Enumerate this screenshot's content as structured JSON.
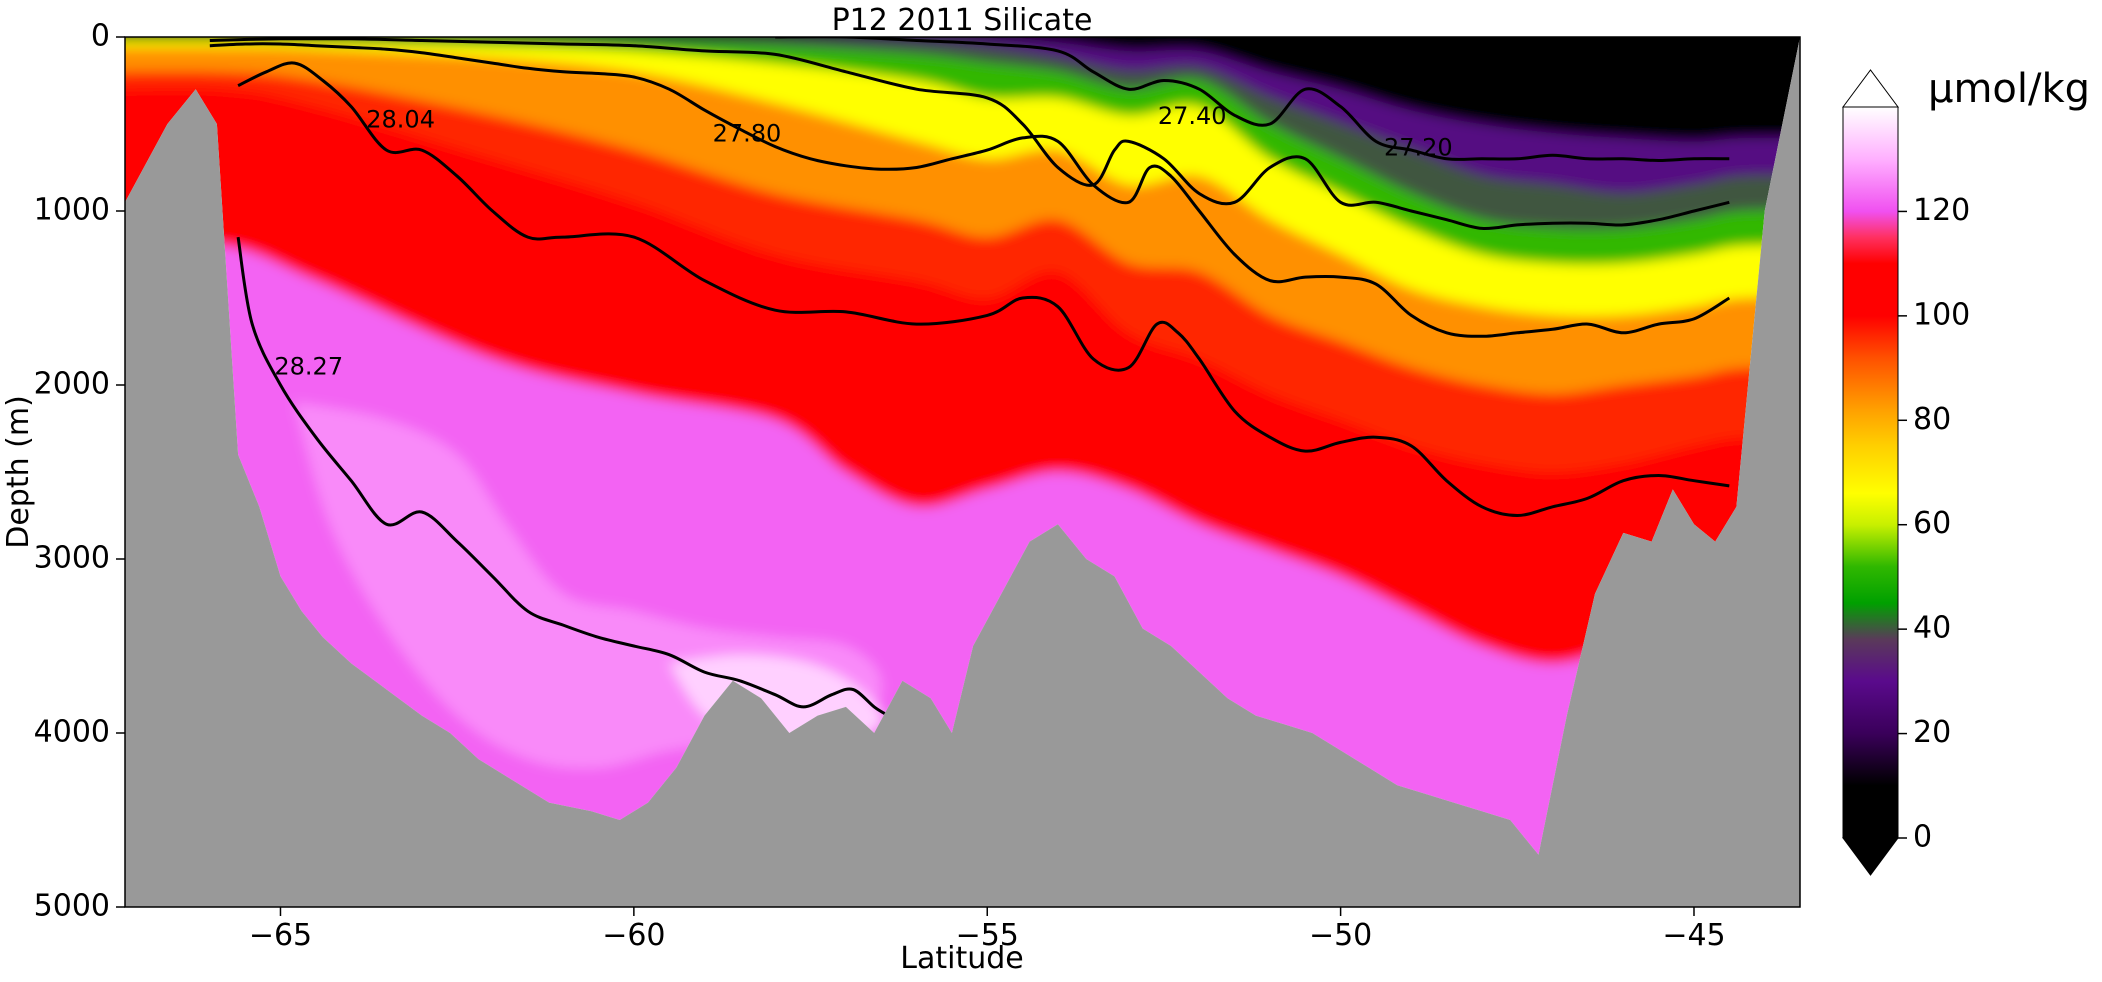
{
  "chart_data": {
    "type": "heatmap",
    "title": "P12 2011 Silicate",
    "xlabel": "Latitude",
    "ylabel": "Depth (m)",
    "xlim": [
      -67.2,
      -43.5
    ],
    "ylim": [
      5000,
      0
    ],
    "xticks": [
      -65,
      -60,
      -55,
      -50,
      -45
    ],
    "xtick_labels": [
      "−65",
      "−60",
      "−55",
      "−50",
      "−45"
    ],
    "yticks": [
      0,
      1000,
      2000,
      3000,
      4000,
      5000
    ],
    "ytick_labels": [
      "0",
      "1000",
      "2000",
      "3000",
      "4000",
      "5000"
    ],
    "colorbar": {
      "label": "µmol/kg",
      "range": [
        0,
        140
      ],
      "extend": "both",
      "ticks": [
        0,
        20,
        40,
        60,
        80,
        100,
        120
      ],
      "tick_labels": [
        "0",
        "20",
        "40",
        "60",
        "80",
        "100",
        "120"
      ],
      "colormap_stops": [
        {
          "value": 0,
          "color": "#000000"
        },
        {
          "value": 10,
          "color": "#000000"
        },
        {
          "value": 20,
          "color": "#3a005a"
        },
        {
          "value": 30,
          "color": "#5a0a8c"
        },
        {
          "value": 38,
          "color": "#5a3a5a"
        },
        {
          "value": 45,
          "color": "#00a000"
        },
        {
          "value": 52,
          "color": "#30b800"
        },
        {
          "value": 60,
          "color": "#c8f000"
        },
        {
          "value": 66,
          "color": "#ffff00"
        },
        {
          "value": 75,
          "color": "#ffd000"
        },
        {
          "value": 82,
          "color": "#ffa000"
        },
        {
          "value": 92,
          "color": "#ff5000"
        },
        {
          "value": 100,
          "color": "#ff0000"
        },
        {
          "value": 110,
          "color": "#ff0000"
        },
        {
          "value": 115,
          "color": "#ff3060"
        },
        {
          "value": 120,
          "color": "#f050f0"
        },
        {
          "value": 130,
          "color": "#ffb0ff"
        },
        {
          "value": 140,
          "color": "#ffffff"
        }
      ]
    },
    "field_bands": [
      {
        "value": 110,
        "lat": [
          -65.8,
          -64.5,
          -62,
          -60,
          -58,
          -57,
          -56,
          -55,
          -54,
          -53,
          -52,
          -51,
          -50,
          -49,
          -48,
          -47,
          -46,
          -45,
          -44.3
        ],
        "depth": [
          1200,
          1400,
          1850,
          2050,
          2200,
          2500,
          2700,
          2600,
          2500,
          2600,
          2800,
          2950,
          3100,
          3300,
          3500,
          3600,
          3500,
          3400,
          3300
        ]
      },
      {
        "value": 96,
        "lat": [
          -65.8,
          -64.5,
          -62,
          -60,
          -58,
          -56,
          -55,
          -54,
          -53,
          -52,
          -51,
          -50,
          -49,
          -48,
          -47,
          -46,
          -45,
          -44.3
        ],
        "depth": [
          300,
          400,
          700,
          950,
          1250,
          1400,
          1500,
          1350,
          1700,
          1850,
          2050,
          2200,
          2350,
          2450,
          2500,
          2450,
          2350,
          2300
        ]
      },
      {
        "value": 84,
        "lat": [
          -65.8,
          -64.5,
          -62,
          -60,
          -58,
          -56,
          -55,
          -54,
          -53,
          -52,
          -51,
          -50,
          -49,
          -48,
          -47,
          -46,
          -45,
          -44.3
        ],
        "depth": [
          200,
          250,
          450,
          650,
          900,
          1050,
          1150,
          1050,
          1300,
          1350,
          1600,
          1750,
          1900,
          2000,
          2050,
          2000,
          1950,
          1900
        ]
      },
      {
        "value": 66,
        "lat": [
          -65.8,
          -64.5,
          -62,
          -60,
          -58,
          -56,
          -55,
          -54,
          -53,
          -52,
          -51,
          -50,
          -49,
          -48,
          -47,
          -46,
          -45,
          -44.3
        ],
        "depth": [
          60,
          70,
          120,
          200,
          380,
          600,
          700,
          650,
          850,
          800,
          1050,
          1250,
          1450,
          1550,
          1600,
          1600,
          1550,
          1500
        ]
      },
      {
        "value": 52,
        "lat": [
          -65.8,
          -64.5,
          -62,
          -60,
          -58,
          -56,
          -55,
          -54,
          -53,
          -52,
          -51,
          -50,
          -49,
          -48,
          -47,
          -46,
          -45,
          -44.3
        ],
        "depth": [
          20,
          30,
          50,
          80,
          150,
          250,
          350,
          350,
          450,
          400,
          700,
          900,
          1100,
          1250,
          1300,
          1300,
          1250,
          1200
        ]
      },
      {
        "value": 40,
        "lat": [
          -65.8,
          -64.5,
          -62,
          -60,
          -58,
          -56,
          -55,
          -54,
          -53,
          -52,
          -51,
          -50,
          -49,
          -48,
          -47,
          -46,
          -45,
          -44.3
        ],
        "depth": [
          5,
          10,
          20,
          30,
          50,
          100,
          150,
          200,
          300,
          250,
          500,
          700,
          900,
          1050,
          1100,
          1100,
          1050,
          1000
        ]
      },
      {
        "value": 28,
        "lat": [
          -65.8,
          -62,
          -60,
          -58,
          -56,
          -55,
          -54,
          -53,
          -52,
          -51,
          -50,
          -49,
          -48,
          -47,
          -46,
          -45,
          -44.3
        ],
        "depth": [
          0,
          0,
          0,
          5,
          30,
          60,
          120,
          200,
          180,
          350,
          500,
          650,
          800,
          850,
          900,
          850,
          800
        ]
      },
      {
        "value": 8,
        "lat": [
          -60,
          -58,
          -56,
          -55,
          -54,
          -53,
          -52,
          -51,
          -50,
          -49,
          -48,
          -47,
          -46,
          -45,
          -44.3
        ],
        "depth": [
          0,
          0,
          0,
          10,
          30,
          80,
          80,
          200,
          300,
          420,
          500,
          550,
          580,
          600,
          580
        ]
      }
    ],
    "deep_patches": [
      {
        "value": 126,
        "lat": [
          -64.8,
          -63.5,
          -62.5,
          -61.8,
          -61,
          -60,
          -59,
          -58,
          -57,
          -56.5,
          -56.8,
          -57.5,
          -58.5,
          -59.5,
          -60.5,
          -61.5,
          -62.5,
          -63.5,
          -64.3
        ],
        "depth": [
          2100,
          2200,
          2400,
          2800,
          3200,
          3300,
          3400,
          3450,
          3500,
          3700,
          4000,
          4100,
          4050,
          4100,
          4200,
          4150,
          3900,
          3400,
          2800
        ]
      },
      {
        "value": 134,
        "lat": [
          -59.5,
          -58.5,
          -57.5,
          -56.8,
          -56.5,
          -57.3,
          -58.2,
          -59
        ],
        "depth": [
          3600,
          3550,
          3600,
          3750,
          3950,
          4080,
          4050,
          3900
        ]
      }
    ],
    "density_contours": [
      {
        "label": "28.27",
        "lat": [
          -65.6,
          -65.4,
          -65.0,
          -64.5,
          -64.0,
          -63.5,
          -63.0,
          -62.5,
          -62.0,
          -61.5,
          -61.0,
          -60.5,
          -60.0,
          -59.5,
          -59.0,
          -58.5,
          -58.0,
          -57.6,
          -57.2,
          -56.9,
          -56.6,
          -56.4
        ],
        "depth": [
          1150,
          1650,
          2000,
          2300,
          2550,
          2800,
          2730,
          2900,
          3100,
          3300,
          3380,
          3450,
          3500,
          3550,
          3650,
          3700,
          3780,
          3850,
          3780,
          3750,
          3850,
          3900
        ]
      },
      {
        "label": "28.04",
        "lat": [
          -65.6,
          -65.2,
          -64.8,
          -64.4,
          -64.0,
          -63.5,
          -63.0,
          -62.5,
          -62.0,
          -61.5,
          -61.0,
          -60.0,
          -59.0,
          -58.0,
          -57.0,
          -56.0,
          -55.0,
          -54.5,
          -54.0,
          -53.5,
          -53.0,
          -52.6,
          -52.3,
          -52.0,
          -51.5,
          -51.0,
          -50.5,
          -50.0,
          -49.5,
          -49.0,
          -48.5,
          -48.0,
          -47.5,
          -47.0,
          -46.5,
          -46.0,
          -45.5,
          -45.0,
          -44.5
        ],
        "depth": [
          280,
          200,
          150,
          250,
          400,
          650,
          650,
          800,
          1000,
          1150,
          1150,
          1150,
          1400,
          1570,
          1580,
          1650,
          1600,
          1500,
          1550,
          1850,
          1900,
          1650,
          1700,
          1850,
          2150,
          2300,
          2380,
          2330,
          2300,
          2350,
          2550,
          2700,
          2750,
          2700,
          2650,
          2550,
          2520,
          2550,
          2580
        ]
      },
      {
        "label": "27.80",
        "lat": [
          -66.0,
          -65.5,
          -65.0,
          -64.5,
          -64.0,
          -63.5,
          -63.0,
          -62.5,
          -62.0,
          -61.5,
          -61.0,
          -60.5,
          -60.0,
          -59.5,
          -59.0,
          -58.5,
          -58.0,
          -57.5,
          -57.0,
          -56.5,
          -56.0,
          -55.5,
          -55.0,
          -54.5,
          -54.0,
          -53.5,
          -53.0,
          -52.7,
          -52.4,
          -52.0,
          -51.5,
          -51.0,
          -50.5,
          -50.0,
          -49.5,
          -49.0,
          -48.5,
          -48.0,
          -47.5,
          -47.0,
          -46.5,
          -46.0,
          -45.5,
          -45.0,
          -44.5
        ],
        "depth": [
          50,
          40,
          40,
          50,
          60,
          70,
          90,
          120,
          150,
          180,
          200,
          210,
          230,
          300,
          420,
          530,
          630,
          700,
          740,
          760,
          750,
          700,
          650,
          580,
          600,
          850,
          950,
          750,
          800,
          1000,
          1250,
          1400,
          1380,
          1380,
          1420,
          1600,
          1700,
          1720,
          1700,
          1680,
          1650,
          1700,
          1650,
          1620,
          1500
        ]
      },
      {
        "label": "27.40",
        "lat": [
          -66.0,
          -65.0,
          -64.0,
          -63.0,
          -62.0,
          -61.0,
          -60.0,
          -59.0,
          -58.0,
          -57.0,
          -56.0,
          -55.0,
          -54.5,
          -54.0,
          -53.5,
          -53.2,
          -53.0,
          -52.5,
          -52.0,
          -51.5,
          -51.0,
          -50.5,
          -50.0,
          -49.5,
          -49.0,
          -48.5,
          -48.0,
          -47.5,
          -47.0,
          -46.5,
          -46.0,
          -45.5,
          -45.0,
          -44.5
        ],
        "depth": [
          20,
          10,
          10,
          20,
          30,
          40,
          50,
          80,
          100,
          200,
          300,
          350,
          500,
          750,
          850,
          650,
          600,
          700,
          900,
          950,
          750,
          700,
          950,
          950,
          1000,
          1050,
          1100,
          1080,
          1070,
          1070,
          1080,
          1050,
          1000,
          950
        ]
      },
      {
        "label": "27.20",
        "lat": [
          -58.0,
          -57.0,
          -56.0,
          -55.0,
          -54.0,
          -53.5,
          -53.0,
          -52.5,
          -52.0,
          -51.5,
          -51.0,
          -50.5,
          -50.0,
          -49.5,
          -49.0,
          -48.5,
          -48.0,
          -47.5,
          -47.0,
          -46.5,
          -46.0,
          -45.5,
          -45.0,
          -44.5
        ],
        "depth": [
          0,
          0,
          20,
          40,
          80,
          200,
          300,
          250,
          300,
          450,
          500,
          300,
          400,
          600,
          650,
          700,
          700,
          700,
          680,
          700,
          700,
          710,
          700,
          700
        ]
      }
    ],
    "contour_labels": [
      {
        "text": "28.04",
        "lat": -63.3,
        "depth": 480
      },
      {
        "text": "27.80",
        "lat": -58.4,
        "depth": 560
      },
      {
        "text": "27.40",
        "lat": -52.1,
        "depth": 460
      },
      {
        "text": "27.20",
        "lat": -48.9,
        "depth": 640
      },
      {
        "text": "28.27",
        "lat": -64.6,
        "depth": 1900
      }
    ],
    "bathymetry": {
      "lat": [
        -67.2,
        -66.6,
        -66.2,
        -65.9,
        -65.6,
        -65.3,
        -65.0,
        -64.7,
        -64.4,
        -64.0,
        -63.5,
        -63.0,
        -62.6,
        -62.2,
        -61.8,
        -61.2,
        -60.6,
        -60.2,
        -59.8,
        -59.4,
        -59.0,
        -58.6,
        -58.2,
        -57.8,
        -57.4,
        -57.0,
        -56.6,
        -56.2,
        -55.8,
        -55.5,
        -55.2,
        -54.8,
        -54.4,
        -54.0,
        -53.6,
        -53.2,
        -52.8,
        -52.4,
        -52.0,
        -51.6,
        -51.2,
        -50.8,
        -50.4,
        -50.0,
        -49.6,
        -49.2,
        -48.8,
        -48.4,
        -48.0,
        -47.6,
        -47.2,
        -46.8,
        -46.4,
        -46.0,
        -45.6,
        -45.3,
        -45.0,
        -44.7,
        -44.4,
        -44.0,
        -43.5
      ],
      "depth": [
        950,
        500,
        300,
        500,
        2400,
        2700,
        3100,
        3300,
        3450,
        3600,
        3750,
        3900,
        4000,
        4150,
        4250,
        4400,
        4450,
        4500,
        4400,
        4200,
        3900,
        3700,
        3800,
        4000,
        3900,
        3850,
        4000,
        3700,
        3800,
        4000,
        3500,
        3200,
        2900,
        2800,
        3000,
        3100,
        3400,
        3500,
        3650,
        3800,
        3900,
        3950,
        4000,
        4100,
        4200,
        4300,
        4350,
        4400,
        4450,
        4500,
        4700,
        3900,
        3200,
        2850,
        2900,
        2600,
        2800,
        2900,
        2700,
        1000,
        0
      ]
    }
  }
}
